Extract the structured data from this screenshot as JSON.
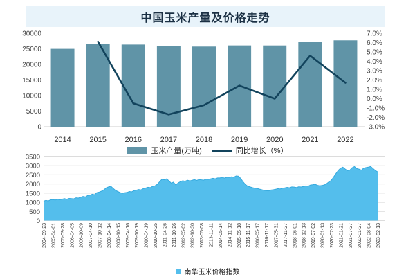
{
  "title": "中国玉米产量及价格走势",
  "chart_data": [
    {
      "type": "bar",
      "subtype": "bar+line-combo",
      "categories": [
        "2014",
        "2015",
        "2016",
        "2017",
        "2018",
        "2019",
        "2020",
        "2021",
        "2022"
      ],
      "series": [
        {
          "name": "玉米产量(万吨)",
          "kind": "bar",
          "color": "#6094a7",
          "axis": "left",
          "values": [
            24976,
            26499,
            26361,
            25907,
            25717,
            26078,
            26067,
            27255,
            27720
          ]
        },
        {
          "name": "同比增长（%）",
          "kind": "line",
          "color": "#12435c",
          "axis": "right",
          "values": [
            null,
            6.1,
            -0.5,
            -1.7,
            -0.7,
            1.4,
            0.0,
            4.6,
            1.7
          ]
        }
      ],
      "left_axis": {
        "min": 0,
        "max": 30000,
        "step": 5000,
        "tick_labels": [
          "30000",
          "25000",
          "20000",
          "15000",
          "10000",
          "5000",
          "0"
        ]
      },
      "right_axis": {
        "min": -3,
        "max": 7,
        "step": 1,
        "tick_labels": [
          "7.0%",
          "6.0%",
          "5.0%",
          "4.0%",
          "3.0%",
          "2.0%",
          "1.0%",
          "0.0%",
          "-1.0%",
          "-2.0%",
          "-3.0%"
        ]
      },
      "grid": false,
      "legend_position": "bottom"
    },
    {
      "type": "area",
      "name": "南华玉米价格指数",
      "color": "#54beec",
      "edge_color": "#35a9de",
      "grid": true,
      "legend_position": "bottom",
      "y_axis": {
        "min": 0,
        "max": 3500,
        "step": 500,
        "tick_labels": [
          "3500",
          "3000",
          "2500",
          "2000",
          "1500",
          "1000",
          "500",
          "0"
        ]
      },
      "x_tick_labels": [
        "2004-09-23",
        "2005-04-01",
        "2005-09-28",
        "2006-04-05",
        "2006-10-09",
        "2007-04-10",
        "2007-10-12",
        "2008-04-14",
        "2008-10-15",
        "2009-04-16",
        "2009-10-19",
        "2010-04-19",
        "2010-10-25",
        "2011-04-26",
        "2011-10-26",
        "2012-05-02",
        "2012-10-30",
        "2013-05-08",
        "2013-11-11",
        "2014-05-14",
        "2014-11-12",
        "2015-05-18",
        "2015-11-17",
        "2016-05-17",
        "2016-11-17",
        "2017-05-31",
        "2017-11-27",
        "2018-06-01",
        "2018-12-13",
        "2019-07-02",
        "2020-01-13",
        "2020-07-23",
        "2021-01-21",
        "2021-07-27",
        "2022-01-27",
        "2022-08-04",
        "2023-02-13"
      ],
      "values": [
        1060,
        1105,
        1075,
        1130,
        1150,
        1120,
        1165,
        1140,
        1170,
        1200,
        1165,
        1210,
        1205,
        1190,
        1245,
        1230,
        1270,
        1320,
        1290,
        1370,
        1390,
        1440,
        1415,
        1530,
        1560,
        1610,
        1680,
        1790,
        1840,
        1875,
        1760,
        1650,
        1590,
        1530,
        1490,
        1520,
        1540,
        1590,
        1570,
        1640,
        1660,
        1700,
        1675,
        1750,
        1780,
        1820,
        1800,
        1870,
        1900,
        1980,
        2120,
        2260,
        2230,
        2280,
        2180,
        2050,
        2100,
        1950,
        2060,
        2130,
        2180,
        2150,
        2210,
        2170,
        2200,
        2240,
        2195,
        2245,
        2230,
        2210,
        2260,
        2250,
        2280,
        2310,
        2285,
        2330,
        2330,
        2365,
        2325,
        2370,
        2360,
        2390,
        2370,
        2440,
        2430,
        2300,
        2120,
        1970,
        1880,
        1840,
        1800,
        1770,
        1760,
        1720,
        1690,
        1650,
        1640,
        1625,
        1670,
        1685,
        1710,
        1745,
        1725,
        1775,
        1790,
        1815,
        1795,
        1840,
        1830,
        1805,
        1850,
        1835,
        1860,
        1895,
        1875,
        1940,
        1960,
        1985,
        1930,
        1905,
        1920,
        1950,
        2020,
        2120,
        2200,
        2380,
        2560,
        2740,
        2860,
        2920,
        2820,
        2730,
        2760,
        2890,
        2950,
        2840,
        2810,
        2760,
        2870,
        2900,
        2920,
        2960,
        2850,
        2740,
        2660
      ]
    }
  ]
}
